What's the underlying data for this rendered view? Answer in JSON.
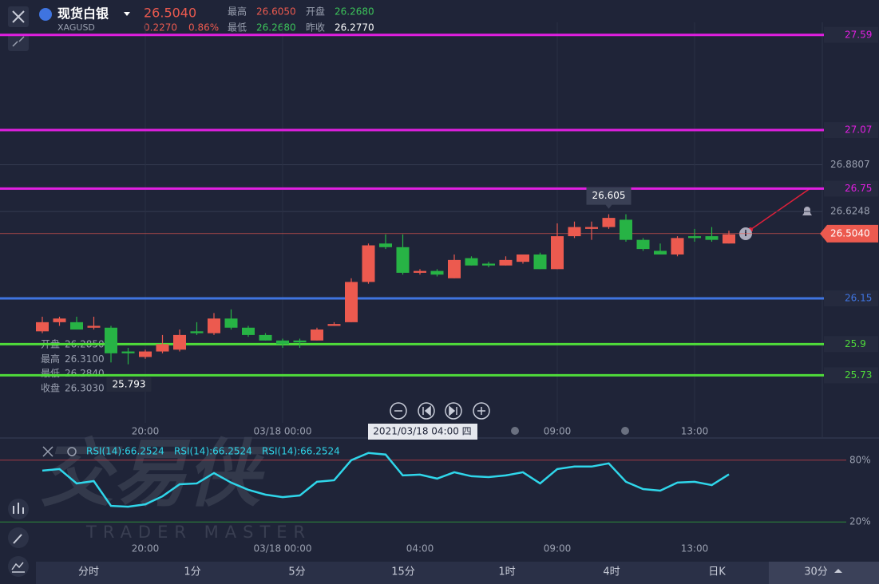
{
  "header": {
    "name": "现货白银",
    "symbol": "XAGUSD",
    "price": "26.5040",
    "change": "0.2270",
    "change_pct": "0.86%",
    "high_label": "最高",
    "high": "26.6050",
    "open_label": "开盘",
    "open": "26.2680",
    "low_label": "最低",
    "low": "26.2680",
    "prev_label": "昨收",
    "prev": "26.2770"
  },
  "info_box": [
    [
      "开盘",
      "26.2850"
    ],
    [
      "最高",
      "26.3100"
    ],
    [
      "最低",
      "26.2840"
    ],
    [
      "收盘",
      "26.3030"
    ]
  ],
  "crosshair_label": "2021/03/18 04:00 四",
  "watermark": {
    "logo": "交易侠",
    "tagline": "TRADER MASTER"
  },
  "tabs": [
    "分时",
    "1分",
    "5分",
    "15分",
    "1时",
    "4时",
    "日K",
    "30分"
  ],
  "chart_data": [
    {
      "type": "candlestick",
      "categories": [
        null,
        null,
        null,
        null,
        null,
        null,
        "20:00",
        null,
        null,
        null,
        null,
        null,
        null,
        null,
        "03/18 00:00",
        null,
        null,
        null,
        null,
        null,
        null,
        null,
        null,
        null,
        null,
        null,
        null,
        null,
        null,
        null,
        "09:00",
        null,
        null,
        null,
        null,
        null,
        null,
        null,
        "13:00",
        null,
        null
      ],
      "open": [
        25.97,
        26.02,
        26.02,
        25.99,
        25.99,
        25.86,
        25.83,
        25.86,
        25.87,
        25.97,
        25.96,
        26.04,
        25.99,
        25.95,
        25.92,
        25.92,
        25.92,
        26.0,
        26.02,
        26.24,
        26.45,
        26.43,
        26.29,
        26.3,
        26.26,
        26.37,
        26.34,
        26.33,
        26.35,
        26.39,
        26.31,
        26.49,
        26.53,
        26.54,
        26.58,
        26.47,
        26.41,
        26.39,
        26.49,
        26.49,
        26.45
      ],
      "high": [
        26.05,
        26.05,
        26.05,
        26.05,
        26.0,
        25.88,
        25.87,
        25.95,
        25.98,
        26.02,
        26.07,
        26.09,
        26.0,
        25.96,
        25.93,
        25.93,
        25.99,
        26.02,
        26.26,
        26.45,
        26.5,
        26.5,
        26.31,
        26.31,
        26.39,
        26.38,
        26.35,
        26.38,
        26.39,
        26.4,
        26.56,
        26.57,
        26.57,
        26.61,
        26.61,
        26.48,
        26.45,
        26.49,
        26.53,
        26.54,
        26.52
      ],
      "low": [
        25.96,
        26.0,
        25.98,
        25.98,
        25.8,
        25.79,
        25.82,
        25.85,
        25.86,
        25.95,
        25.95,
        25.98,
        25.94,
        25.92,
        25.88,
        25.88,
        25.92,
        26.0,
        26.02,
        26.23,
        26.42,
        26.28,
        26.28,
        26.27,
        26.26,
        26.33,
        26.32,
        26.33,
        26.34,
        26.31,
        26.31,
        26.48,
        26.47,
        26.53,
        26.46,
        26.41,
        26.39,
        26.38,
        26.46,
        26.46,
        26.45
      ],
      "close": [
        26.02,
        26.04,
        25.98,
        26.0,
        25.85,
        25.85,
        25.86,
        25.9,
        25.95,
        25.96,
        26.04,
        25.99,
        25.95,
        25.92,
        25.9,
        25.91,
        25.98,
        26.01,
        26.24,
        26.44,
        26.43,
        26.29,
        26.3,
        26.28,
        26.36,
        26.33,
        26.33,
        26.36,
        26.39,
        26.31,
        26.49,
        26.54,
        26.54,
        26.59,
        26.47,
        26.42,
        26.39,
        26.48,
        26.48,
        26.47,
        26.5
      ],
      "up_color": "#ec5a4f",
      "down_color": "#27b345",
      "ylim": [
        25.47,
        27.65
      ],
      "yticks": [
        26.8807,
        26.6248
      ],
      "levels": [
        {
          "value": 27.59,
          "color": "#e01fe0"
        },
        {
          "value": 27.07,
          "color": "#e01fe0"
        },
        {
          "value": 26.75,
          "color": "#e01fe0"
        },
        {
          "value": 26.15,
          "color": "#3f74e0"
        },
        {
          "value": 25.9,
          "color": "#4fdc3a"
        },
        {
          "value": 25.73,
          "color": "#4fdc3a"
        }
      ],
      "last_price": {
        "value": 26.504,
        "label": "26.5040",
        "color": "#ec5a4f"
      },
      "high_marker": 26.605,
      "low_marker": 25.793
    },
    {
      "type": "line",
      "legend": [
        "RSI(14):66.2524",
        "RSI(14):66.2524",
        "RSI(14):66.2524"
      ],
      "categories": [
        null,
        null,
        null,
        null,
        null,
        null,
        "20:00",
        null,
        null,
        null,
        null,
        null,
        null,
        null,
        "03/18 00:00",
        null,
        null,
        null,
        null,
        null,
        null,
        null,
        "04:00",
        null,
        null,
        null,
        null,
        null,
        null,
        null,
        "09:00",
        null,
        null,
        null,
        null,
        null,
        null,
        null,
        "13:00",
        null,
        null
      ],
      "values": [
        69.9,
        71.4,
        57.4,
        59.7,
        35.6,
        34.8,
        37.1,
        44.9,
        56.6,
        57.4,
        67.5,
        58.2,
        51.2,
        46.5,
        44.1,
        45.7,
        59.0,
        60.5,
        80.0,
        87.0,
        85.5,
        65.2,
        66.0,
        62.1,
        68.3,
        64.4,
        63.6,
        65.2,
        68.3,
        57.4,
        71.4,
        73.8,
        73.8,
        76.9,
        59.0,
        51.9,
        50.4,
        58.2,
        59.0,
        55.8,
        66.25
      ],
      "color": "#2fd6ea",
      "ylim": [
        0,
        100
      ],
      "yticks": [
        {
          "value": 80,
          "label": "80%"
        },
        {
          "value": 20,
          "label": "20%"
        }
      ]
    }
  ]
}
